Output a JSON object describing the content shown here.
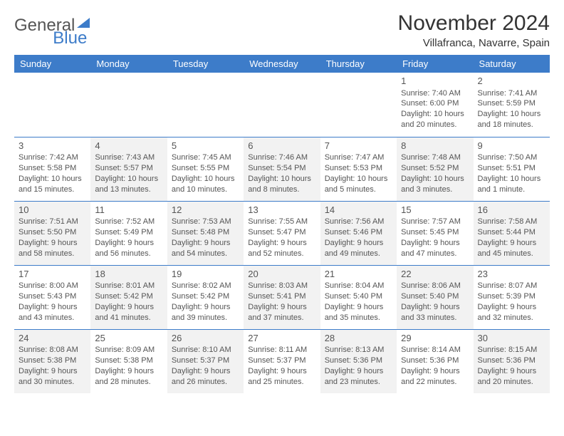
{
  "logo": {
    "text_gray": "General",
    "text_blue": "Blue"
  },
  "header": {
    "title": "November 2024",
    "location": "Villafranca, Navarre, Spain"
  },
  "colors": {
    "accent": "#3d7cc9",
    "shade": "#f2f2f2",
    "text": "#555555"
  },
  "daynames": [
    "Sunday",
    "Monday",
    "Tuesday",
    "Wednesday",
    "Thursday",
    "Friday",
    "Saturday"
  ],
  "weeks": [
    [
      {
        "day": "",
        "sunrise": "",
        "sunset": "",
        "daylight1": "",
        "daylight2": "",
        "shade": false
      },
      {
        "day": "",
        "sunrise": "",
        "sunset": "",
        "daylight1": "",
        "daylight2": "",
        "shade": false
      },
      {
        "day": "",
        "sunrise": "",
        "sunset": "",
        "daylight1": "",
        "daylight2": "",
        "shade": false
      },
      {
        "day": "",
        "sunrise": "",
        "sunset": "",
        "daylight1": "",
        "daylight2": "",
        "shade": false
      },
      {
        "day": "",
        "sunrise": "",
        "sunset": "",
        "daylight1": "",
        "daylight2": "",
        "shade": false
      },
      {
        "day": "1",
        "sunrise": "Sunrise: 7:40 AM",
        "sunset": "Sunset: 6:00 PM",
        "daylight1": "Daylight: 10 hours",
        "daylight2": "and 20 minutes.",
        "shade": false
      },
      {
        "day": "2",
        "sunrise": "Sunrise: 7:41 AM",
        "sunset": "Sunset: 5:59 PM",
        "daylight1": "Daylight: 10 hours",
        "daylight2": "and 18 minutes.",
        "shade": false
      }
    ],
    [
      {
        "day": "3",
        "sunrise": "Sunrise: 7:42 AM",
        "sunset": "Sunset: 5:58 PM",
        "daylight1": "Daylight: 10 hours",
        "daylight2": "and 15 minutes.",
        "shade": false
      },
      {
        "day": "4",
        "sunrise": "Sunrise: 7:43 AM",
        "sunset": "Sunset: 5:57 PM",
        "daylight1": "Daylight: 10 hours",
        "daylight2": "and 13 minutes.",
        "shade": true
      },
      {
        "day": "5",
        "sunrise": "Sunrise: 7:45 AM",
        "sunset": "Sunset: 5:55 PM",
        "daylight1": "Daylight: 10 hours",
        "daylight2": "and 10 minutes.",
        "shade": false
      },
      {
        "day": "6",
        "sunrise": "Sunrise: 7:46 AM",
        "sunset": "Sunset: 5:54 PM",
        "daylight1": "Daylight: 10 hours",
        "daylight2": "and 8 minutes.",
        "shade": true
      },
      {
        "day": "7",
        "sunrise": "Sunrise: 7:47 AM",
        "sunset": "Sunset: 5:53 PM",
        "daylight1": "Daylight: 10 hours",
        "daylight2": "and 5 minutes.",
        "shade": false
      },
      {
        "day": "8",
        "sunrise": "Sunrise: 7:48 AM",
        "sunset": "Sunset: 5:52 PM",
        "daylight1": "Daylight: 10 hours",
        "daylight2": "and 3 minutes.",
        "shade": true
      },
      {
        "day": "9",
        "sunrise": "Sunrise: 7:50 AM",
        "sunset": "Sunset: 5:51 PM",
        "daylight1": "Daylight: 10 hours",
        "daylight2": "and 1 minute.",
        "shade": false
      }
    ],
    [
      {
        "day": "10",
        "sunrise": "Sunrise: 7:51 AM",
        "sunset": "Sunset: 5:50 PM",
        "daylight1": "Daylight: 9 hours",
        "daylight2": "and 58 minutes.",
        "shade": true
      },
      {
        "day": "11",
        "sunrise": "Sunrise: 7:52 AM",
        "sunset": "Sunset: 5:49 PM",
        "daylight1": "Daylight: 9 hours",
        "daylight2": "and 56 minutes.",
        "shade": false
      },
      {
        "day": "12",
        "sunrise": "Sunrise: 7:53 AM",
        "sunset": "Sunset: 5:48 PM",
        "daylight1": "Daylight: 9 hours",
        "daylight2": "and 54 minutes.",
        "shade": true
      },
      {
        "day": "13",
        "sunrise": "Sunrise: 7:55 AM",
        "sunset": "Sunset: 5:47 PM",
        "daylight1": "Daylight: 9 hours",
        "daylight2": "and 52 minutes.",
        "shade": false
      },
      {
        "day": "14",
        "sunrise": "Sunrise: 7:56 AM",
        "sunset": "Sunset: 5:46 PM",
        "daylight1": "Daylight: 9 hours",
        "daylight2": "and 49 minutes.",
        "shade": true
      },
      {
        "day": "15",
        "sunrise": "Sunrise: 7:57 AM",
        "sunset": "Sunset: 5:45 PM",
        "daylight1": "Daylight: 9 hours",
        "daylight2": "and 47 minutes.",
        "shade": false
      },
      {
        "day": "16",
        "sunrise": "Sunrise: 7:58 AM",
        "sunset": "Sunset: 5:44 PM",
        "daylight1": "Daylight: 9 hours",
        "daylight2": "and 45 minutes.",
        "shade": true
      }
    ],
    [
      {
        "day": "17",
        "sunrise": "Sunrise: 8:00 AM",
        "sunset": "Sunset: 5:43 PM",
        "daylight1": "Daylight: 9 hours",
        "daylight2": "and 43 minutes.",
        "shade": false
      },
      {
        "day": "18",
        "sunrise": "Sunrise: 8:01 AM",
        "sunset": "Sunset: 5:42 PM",
        "daylight1": "Daylight: 9 hours",
        "daylight2": "and 41 minutes.",
        "shade": true
      },
      {
        "day": "19",
        "sunrise": "Sunrise: 8:02 AM",
        "sunset": "Sunset: 5:42 PM",
        "daylight1": "Daylight: 9 hours",
        "daylight2": "and 39 minutes.",
        "shade": false
      },
      {
        "day": "20",
        "sunrise": "Sunrise: 8:03 AM",
        "sunset": "Sunset: 5:41 PM",
        "daylight1": "Daylight: 9 hours",
        "daylight2": "and 37 minutes.",
        "shade": true
      },
      {
        "day": "21",
        "sunrise": "Sunrise: 8:04 AM",
        "sunset": "Sunset: 5:40 PM",
        "daylight1": "Daylight: 9 hours",
        "daylight2": "and 35 minutes.",
        "shade": false
      },
      {
        "day": "22",
        "sunrise": "Sunrise: 8:06 AM",
        "sunset": "Sunset: 5:40 PM",
        "daylight1": "Daylight: 9 hours",
        "daylight2": "and 33 minutes.",
        "shade": true
      },
      {
        "day": "23",
        "sunrise": "Sunrise: 8:07 AM",
        "sunset": "Sunset: 5:39 PM",
        "daylight1": "Daylight: 9 hours",
        "daylight2": "and 32 minutes.",
        "shade": false
      }
    ],
    [
      {
        "day": "24",
        "sunrise": "Sunrise: 8:08 AM",
        "sunset": "Sunset: 5:38 PM",
        "daylight1": "Daylight: 9 hours",
        "daylight2": "and 30 minutes.",
        "shade": true
      },
      {
        "day": "25",
        "sunrise": "Sunrise: 8:09 AM",
        "sunset": "Sunset: 5:38 PM",
        "daylight1": "Daylight: 9 hours",
        "daylight2": "and 28 minutes.",
        "shade": false
      },
      {
        "day": "26",
        "sunrise": "Sunrise: 8:10 AM",
        "sunset": "Sunset: 5:37 PM",
        "daylight1": "Daylight: 9 hours",
        "daylight2": "and 26 minutes.",
        "shade": true
      },
      {
        "day": "27",
        "sunrise": "Sunrise: 8:11 AM",
        "sunset": "Sunset: 5:37 PM",
        "daylight1": "Daylight: 9 hours",
        "daylight2": "and 25 minutes.",
        "shade": false
      },
      {
        "day": "28",
        "sunrise": "Sunrise: 8:13 AM",
        "sunset": "Sunset: 5:36 PM",
        "daylight1": "Daylight: 9 hours",
        "daylight2": "and 23 minutes.",
        "shade": true
      },
      {
        "day": "29",
        "sunrise": "Sunrise: 8:14 AM",
        "sunset": "Sunset: 5:36 PM",
        "daylight1": "Daylight: 9 hours",
        "daylight2": "and 22 minutes.",
        "shade": false
      },
      {
        "day": "30",
        "sunrise": "Sunrise: 8:15 AM",
        "sunset": "Sunset: 5:36 PM",
        "daylight1": "Daylight: 9 hours",
        "daylight2": "and 20 minutes.",
        "shade": true
      }
    ]
  ]
}
